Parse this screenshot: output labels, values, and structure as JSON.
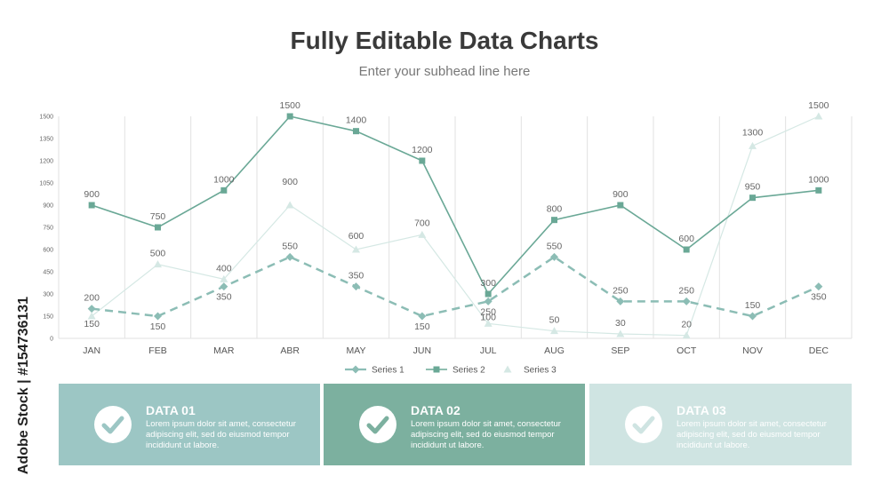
{
  "title": "Fully Editable Data Charts",
  "subtitle": "Enter your subhead line here",
  "colors": {
    "series1": "#8cbdb5",
    "series2": "#6aa896",
    "series3": "#d5e8e4",
    "card1": "#9cc6c4",
    "card2": "#7cb09f",
    "card3": "#cfe4e2",
    "grid": "#e2e2e2"
  },
  "chart_data": {
    "type": "line",
    "categories": [
      "JAN",
      "FEB",
      "MAR",
      "ABR",
      "MAY",
      "JUN",
      "JUL",
      "AUG",
      "SEP",
      "OCT",
      "NOV",
      "DEC"
    ],
    "yticks": [
      "0",
      "150",
      "300",
      "450",
      "600",
      "750",
      "900",
      "1050",
      "1200",
      "1350",
      "1500"
    ],
    "ylim": [
      0,
      1500
    ],
    "grid": "vertical",
    "legend_position": "bottom",
    "series": [
      {
        "name": "Series 1",
        "marker": "diamond",
        "dash": true,
        "values": [
          200,
          150,
          350,
          550,
          350,
          150,
          250,
          550,
          250,
          250,
          150,
          350
        ]
      },
      {
        "name": "Series 2",
        "marker": "square",
        "dash": false,
        "values": [
          900,
          750,
          1000,
          1500,
          1400,
          1200,
          300,
          800,
          900,
          600,
          950,
          1000
        ]
      },
      {
        "name": "Series 3",
        "marker": "triangle",
        "dash": false,
        "values": [
          150,
          500,
          400,
          900,
          600,
          700,
          100,
          50,
          30,
          20,
          1300,
          1500
        ]
      }
    ]
  },
  "cards": [
    {
      "title": "DATA 01",
      "text": "Lorem ipsum dolor sit amet, consectetur adipiscing elit, sed do eiusmod tempor incididunt ut labore."
    },
    {
      "title": "DATA 02",
      "text": "Lorem ipsum dolor sit amet, consectetur adipiscing elit, sed do eiusmod tempor incididunt ut labore."
    },
    {
      "title": "DATA 03",
      "text": "Lorem ipsum dolor sit amet, consectetur adipiscing elit, sed do eiusmod tempor incididunt ut labore."
    }
  ],
  "watermark": "Adobe Stock | #154736131",
  "icons": {
    "card_icon": "check-circle-icon"
  }
}
